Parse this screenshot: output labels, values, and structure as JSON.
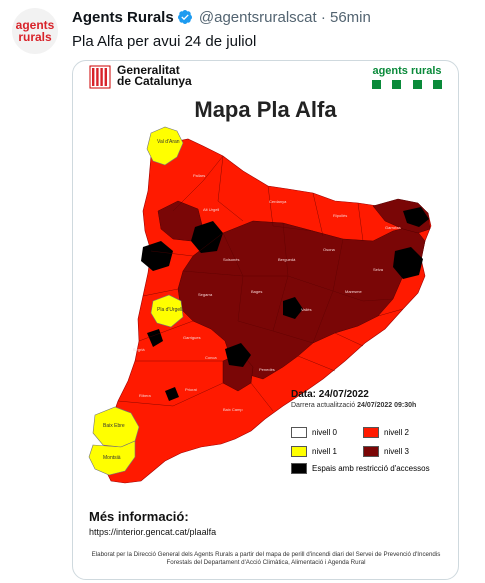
{
  "account": {
    "avatar_line1": "agents",
    "avatar_line2": "rurals",
    "name": "Agents Rurals",
    "handle": "@agentsruralscat",
    "separator": "·",
    "time": "56min",
    "verified_icon": "verified-badge-icon"
  },
  "tweet": {
    "text": "Pla Alfa per avui 24 de juliol"
  },
  "map": {
    "gen_line1": "Generalitat",
    "gen_line2": "de Catalunya",
    "ar_logo": "agents rurals",
    "title": "Mapa Pla Alfa",
    "date_label": "Data:",
    "date": "24/07/2022",
    "updated_label": "Darrera actualització",
    "updated_value": "24/07/2022 09:30h",
    "legend": {
      "nivell0": "nivell 0",
      "nivell1": "nivell 1",
      "nivell2": "nivell 2",
      "nivell3": "nivell 3",
      "restriccio": "Espais amb restricció d'accessos"
    },
    "colors": {
      "nivell0": "#ffffff",
      "nivell1": "#ffff00",
      "nivell2": "#ff0000",
      "nivell3": "#800000",
      "restriccio": "#000000"
    },
    "region_labels": {
      "val_aran": "Val d'Aran",
      "pla_urgell": "Pla d'Urgell",
      "baix_ebre": "Baix Ebre",
      "montsia": "Montsià"
    },
    "more_info_label": "Més informació:",
    "url": "https://interior.gencat.cat/plaalfa",
    "footer": "Elaborat per la Direcció General dels Agents Rurals a partir del mapa de perill d'incendi diari del Servei de Prevenció d'Incendis Forestals del Departament d'Acció Climàtica, Alimentació i Agenda Rural"
  }
}
